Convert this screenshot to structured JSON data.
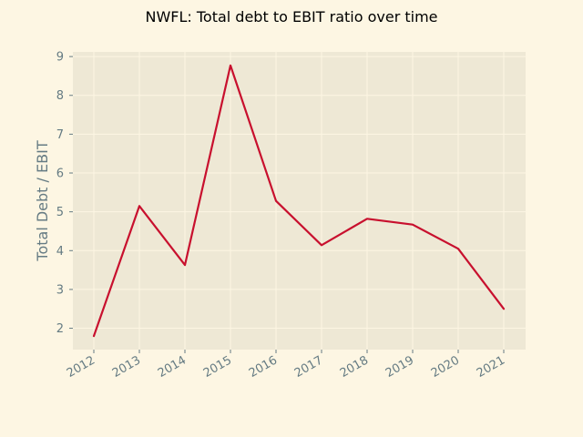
{
  "chart_data": {
    "type": "line",
    "title": "NWFL: Total debt to EBIT ratio over time",
    "xlabel": "",
    "ylabel": "Total Debt / EBIT",
    "x": [
      "2012",
      "2013",
      "2014",
      "2015",
      "2016",
      "2017",
      "2018",
      "2019",
      "2020",
      "2021"
    ],
    "series": [
      {
        "values": [
          1.8,
          5.15,
          3.63,
          8.77,
          5.28,
          4.14,
          4.82,
          4.67,
          4.05,
          2.5
        ]
      }
    ],
    "yticks": [
      2,
      3,
      4,
      5,
      6,
      7,
      8,
      9
    ],
    "ylim": [
      1.45,
      9.12
    ],
    "grid": true,
    "colors": {
      "line": "#c8102e",
      "plot_background": "#eee8d5",
      "figure_background": "#fdf6e3",
      "grid": "#fdf6e3",
      "tick_text": "#657b83"
    }
  }
}
